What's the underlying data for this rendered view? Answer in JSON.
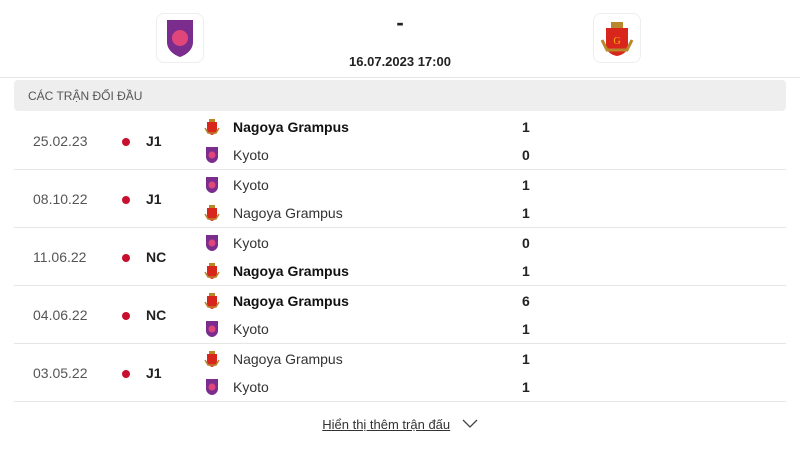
{
  "header": {
    "home": "Kyoto",
    "away": "Nagoya Grampus",
    "score": "-",
    "datetime": "16.07.2023 17:00"
  },
  "section_title": "Các trận đối đầu",
  "matches": [
    {
      "date": "25.02.23",
      "league": "J1",
      "teams": [
        {
          "name": "Nagoya Grampus",
          "logo": "nagoya",
          "score": "1",
          "winner": true
        },
        {
          "name": "Kyoto",
          "logo": "kyoto",
          "score": "0",
          "winner": false
        }
      ]
    },
    {
      "date": "08.10.22",
      "league": "J1",
      "teams": [
        {
          "name": "Kyoto",
          "logo": "kyoto",
          "score": "1",
          "winner": false
        },
        {
          "name": "Nagoya Grampus",
          "logo": "nagoya",
          "score": "1",
          "winner": false
        }
      ]
    },
    {
      "date": "11.06.22",
      "league": "NC",
      "teams": [
        {
          "name": "Kyoto",
          "logo": "kyoto",
          "score": "0",
          "winner": false
        },
        {
          "name": "Nagoya Grampus",
          "logo": "nagoya",
          "score": "1",
          "winner": true
        }
      ]
    },
    {
      "date": "04.06.22",
      "league": "NC",
      "teams": [
        {
          "name": "Nagoya Grampus",
          "logo": "nagoya",
          "score": "6",
          "winner": true
        },
        {
          "name": "Kyoto",
          "logo": "kyoto",
          "score": "1",
          "winner": false
        }
      ]
    },
    {
      "date": "03.05.22",
      "league": "J1",
      "teams": [
        {
          "name": "Nagoya Grampus",
          "logo": "nagoya",
          "score": "1",
          "winner": false
        },
        {
          "name": "Kyoto",
          "logo": "kyoto",
          "score": "1",
          "winner": false
        }
      ]
    }
  ],
  "show_more": "Hiển thị thêm trận đấu",
  "colors": {
    "league_dot": "#c8102e",
    "kyoto": "#7b2d8e",
    "nagoya": "#d8261c"
  }
}
